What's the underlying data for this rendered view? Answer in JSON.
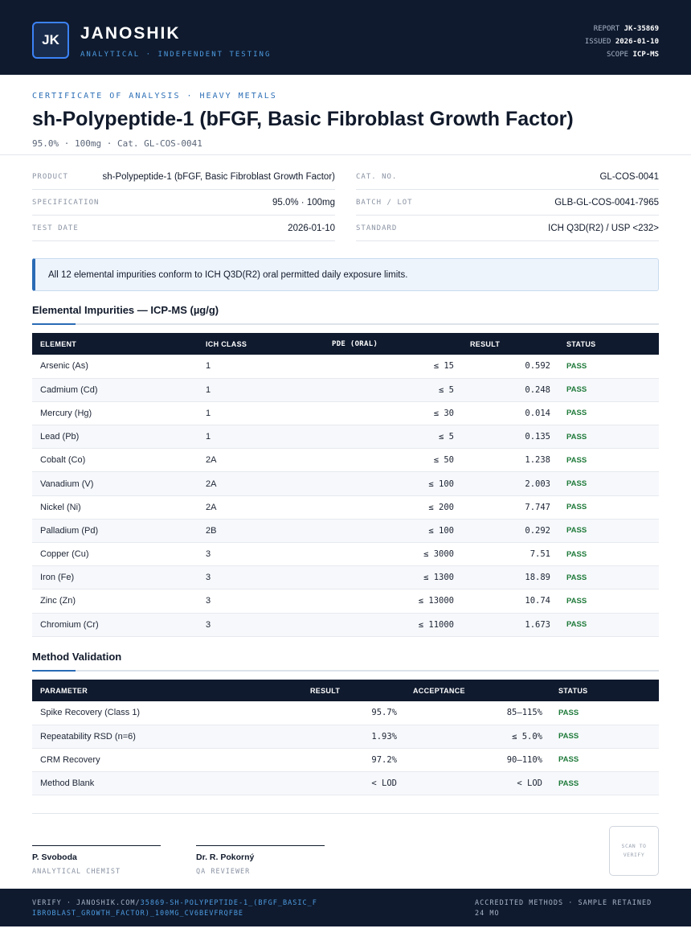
{
  "header": {
    "logo_text": "JK",
    "brand": "JANOSHIK",
    "tagline": "ANALYTICAL · INDEPENDENT TESTING",
    "report_label": "REPORT",
    "report_value": "JK-35869",
    "issued_label": "ISSUED",
    "issued_value": "2026-01-10",
    "scope_label": "SCOPE",
    "scope_value": "ICP-MS"
  },
  "title_block": {
    "kicker": "CERTIFICATE OF ANALYSIS · HEAVY METALS",
    "title": "sh-Polypeptide-1 (bFGF, Basic Fibroblast Growth Factor)",
    "subline": "95.0% · 100mg  ·  Cat. GL-COS-0041"
  },
  "info": {
    "left": [
      {
        "label": "PRODUCT",
        "value": "sh-Polypeptide-1 (bFGF, Basic Fibroblast Growth Factor)"
      },
      {
        "label": "SPECIFICATION",
        "value": "95.0% · 100mg"
      },
      {
        "label": "TEST DATE",
        "value": "2026-01-10"
      }
    ],
    "right": [
      {
        "label": "CAT. NO.",
        "value": "GL-COS-0041"
      },
      {
        "label": "BATCH / LOT",
        "value": "GLB-GL-COS-0041-7965"
      },
      {
        "label": "STANDARD",
        "value": "ICH Q3D(R2) / USP <232>"
      }
    ]
  },
  "notice": "All 12 elemental impurities conform to ICH Q3D(R2) oral permitted daily exposure limits.",
  "impurities": {
    "title": "Elemental Impurities — ICP-MS (µg/g)",
    "headers": [
      "ELEMENT",
      "ICH CLASS",
      "PDE (ORAL)",
      "RESULT",
      "STATUS"
    ],
    "rows": [
      [
        "Arsenic (As)",
        "1",
        "≤ 15",
        "0.592",
        "PASS"
      ],
      [
        "Cadmium (Cd)",
        "1",
        "≤ 5",
        "0.248",
        "PASS"
      ],
      [
        "Mercury (Hg)",
        "1",
        "≤ 30",
        "0.014",
        "PASS"
      ],
      [
        "Lead (Pb)",
        "1",
        "≤ 5",
        "0.135",
        "PASS"
      ],
      [
        "Cobalt (Co)",
        "2A",
        "≤ 50",
        "1.238",
        "PASS"
      ],
      [
        "Vanadium (V)",
        "2A",
        "≤ 100",
        "2.003",
        "PASS"
      ],
      [
        "Nickel (Ni)",
        "2A",
        "≤ 200",
        "7.747",
        "PASS"
      ],
      [
        "Palladium (Pd)",
        "2B",
        "≤ 100",
        "0.292",
        "PASS"
      ],
      [
        "Copper (Cu)",
        "3",
        "≤ 3000",
        "7.51",
        "PASS"
      ],
      [
        "Iron (Fe)",
        "3",
        "≤ 1300",
        "18.89",
        "PASS"
      ],
      [
        "Zinc (Zn)",
        "3",
        "≤ 13000",
        "10.74",
        "PASS"
      ],
      [
        "Chromium (Cr)",
        "3",
        "≤ 11000",
        "1.673",
        "PASS"
      ]
    ]
  },
  "validation": {
    "title": "Method Validation",
    "headers": [
      "PARAMETER",
      "RESULT",
      "ACCEPTANCE",
      "STATUS"
    ],
    "rows": [
      [
        "Spike Recovery (Class 1)",
        "95.7%",
        "85–115%",
        "PASS"
      ],
      [
        "Repeatability RSD (n=6)",
        "1.93%",
        "≤ 5.0%",
        "PASS"
      ],
      [
        "CRM Recovery",
        "97.2%",
        "90–110%",
        "PASS"
      ],
      [
        "Method Blank",
        "< LOD",
        "< LOD",
        "PASS"
      ]
    ]
  },
  "signatures": [
    {
      "name": "P. Svoboda",
      "role": "ANALYTICAL CHEMIST"
    },
    {
      "name": "Dr. R. Pokorný",
      "role": "QA REVIEWER"
    }
  ],
  "qr_text": "SCAN TO VERIFY",
  "footer": {
    "verify_label": "VERIFY · JANOSHIK.COM/",
    "verify_url": "35869-SH-POLYPEPTIDE-1_(BFGF_BASIC_FIBROBLAST_GROWTH_FACTOR)_100MG_CV6BEVFRQFBE",
    "right": "ACCREDITED METHODS · SAMPLE RETAINED 24 MO"
  },
  "colors": {
    "navy": "#0f1a2e",
    "accent_blue": "#2a6bb5",
    "pass_green": "#1f7a3a"
  }
}
